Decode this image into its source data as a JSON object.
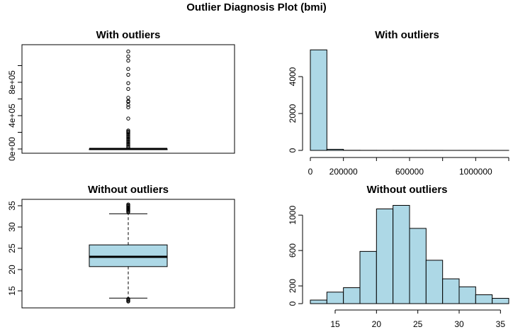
{
  "title": "Outlier Diagnosis Plot (bmi)",
  "chart_data": [
    {
      "type": "boxplot",
      "title": "With outliers",
      "xlabel": "",
      "ylabel": "",
      "ylim": [
        0,
        1200000
      ],
      "yticks": [
        0,
        200000,
        400000,
        600000,
        800000,
        1000000
      ],
      "ytick_labels": [
        "0e+00",
        "",
        "4e+05",
        "",
        "8e+05",
        ""
      ],
      "box": {
        "q1": 20.7,
        "median": 23.0,
        "q3": 25.8,
        "whisker_low": 13.2,
        "whisker_high": 33.2
      },
      "outliers": [
        1170000,
        1110000,
        1060000,
        960000,
        890000,
        790000,
        720000,
        615000,
        575000,
        565000,
        530000,
        500000,
        365000,
        222000,
        210000,
        198000,
        185000,
        170000,
        155000,
        140000,
        125000,
        110000,
        95000,
        80000,
        65000,
        50000,
        35000,
        20000
      ],
      "fill": "#ffffff"
    },
    {
      "type": "histogram",
      "title": "With outliers",
      "xlabel": "",
      "ylabel": "",
      "xlim": [
        0,
        1200000
      ],
      "ylim": [
        0,
        5500
      ],
      "bin_edges": [
        0,
        100000,
        200000,
        300000,
        400000,
        500000,
        600000,
        700000,
        800000,
        900000,
        1000000,
        1100000,
        1200000
      ],
      "counts": [
        5450,
        60,
        6,
        3,
        2,
        3,
        2,
        2,
        1,
        1,
        1,
        1
      ],
      "xticks": [
        0,
        200000,
        600000,
        1000000
      ],
      "xtick_labels": [
        "0",
        "200000",
        "600000",
        "1000000"
      ],
      "yticks": [
        0,
        2000,
        4000
      ],
      "ytick_labels": [
        "0",
        "2000",
        "4000"
      ],
      "fill": "#add8e6"
    },
    {
      "type": "boxplot",
      "title": "Without outliers",
      "xlabel": "",
      "ylabel": "",
      "ylim": [
        12,
        35.5
      ],
      "yticks": [
        15,
        20,
        25,
        30,
        35
      ],
      "ytick_labels": [
        "15",
        "20",
        "25",
        "30",
        "35"
      ],
      "box": {
        "q1": 20.7,
        "median": 23.0,
        "q3": 25.8,
        "whisker_low": 13.3,
        "whisker_high": 33.1
      },
      "outliers": [
        35.3,
        35.1,
        34.9,
        34.7,
        34.5,
        34.3,
        34.1,
        33.9,
        33.7,
        33.5,
        13.1,
        12.9,
        12.7,
        12.5
      ],
      "fill": "#add8e6"
    },
    {
      "type": "histogram",
      "title": "Without outliers",
      "xlabel": "",
      "ylabel": "",
      "xlim": [
        12,
        36
      ],
      "ylim": [
        0,
        1130
      ],
      "bin_edges": [
        12,
        14,
        16,
        18,
        20,
        22,
        24,
        26,
        28,
        30,
        32,
        34,
        36
      ],
      "counts": [
        40,
        130,
        180,
        590,
        1070,
        1110,
        850,
        490,
        280,
        190,
        100,
        60
      ],
      "xticks": [
        15,
        20,
        25,
        30,
        35
      ],
      "xtick_labels": [
        "15",
        "20",
        "25",
        "30",
        "35"
      ],
      "yticks": [
        0,
        200,
        600,
        1000
      ],
      "ytick_labels": [
        "0",
        "200",
        "600",
        "1000"
      ],
      "fill": "#add8e6"
    }
  ]
}
